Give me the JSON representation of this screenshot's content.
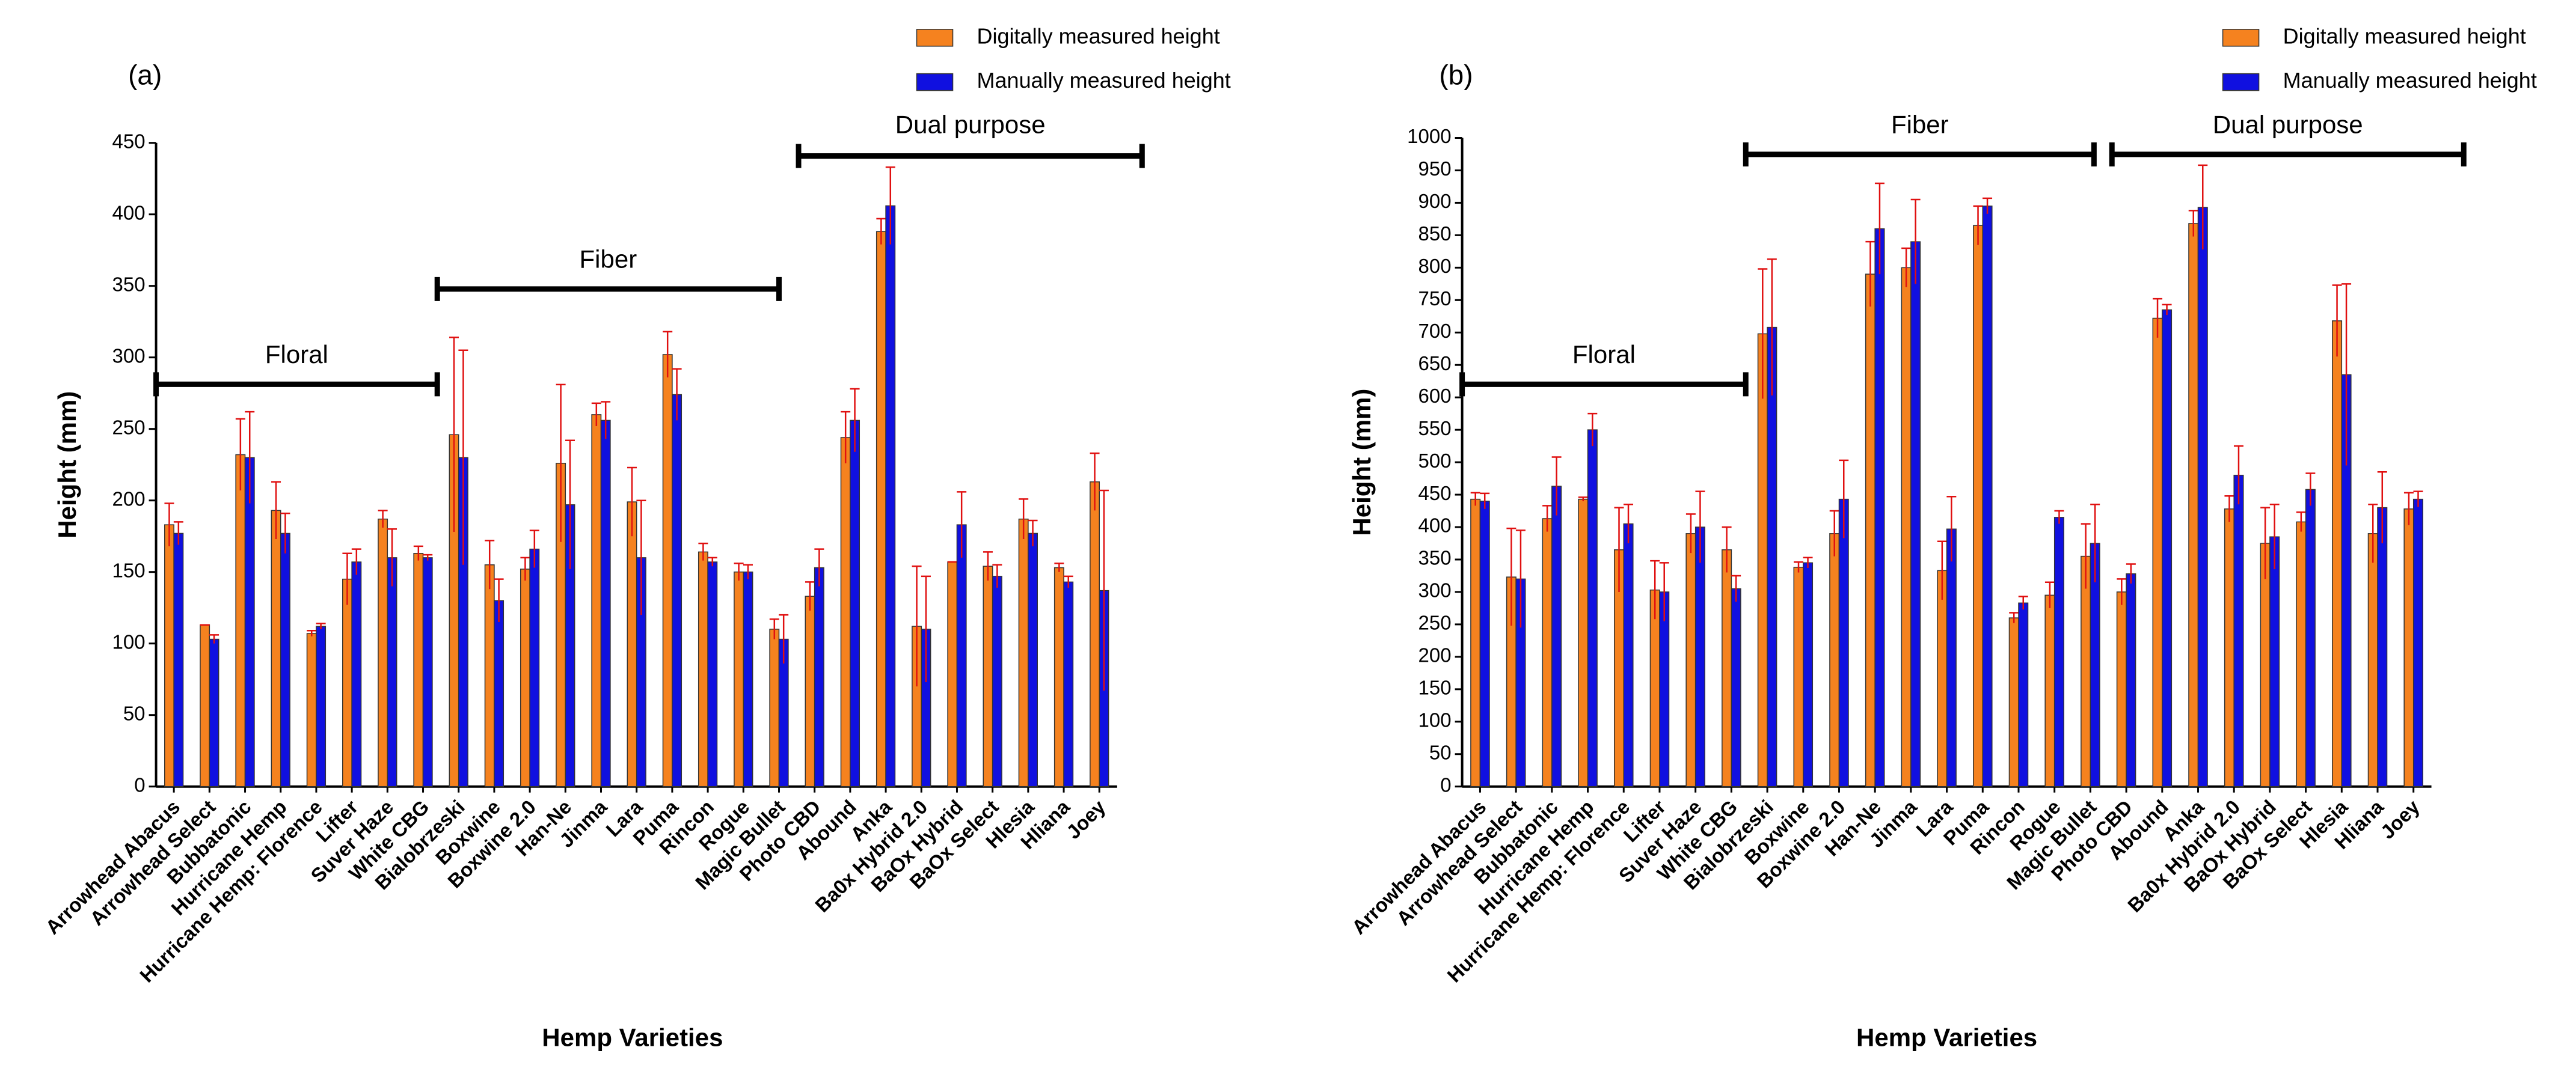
{
  "chart_data": [
    {
      "type": "bar",
      "title": "(a)",
      "xlabel": "Hemp Varieties",
      "ylabel": "Height (mm)",
      "categories": [
        "Arrowhead Abacus",
        "Arrowhead Select",
        "Bubbatonic",
        "Hurricane Hemp",
        "Hurricane Hemp: Florence",
        "Lifter",
        "Suver Haze",
        "White CBG",
        "Bialobrzeski",
        "Boxwine",
        "Boxwine 2.0",
        "Han-Ne",
        "Jinma",
        "Lara",
        "Puma",
        "Rincon",
        "Rogue",
        "Magic Bullet",
        "Photo CBD",
        "Abound",
        "Anka",
        "Ba0x Hybrid 2.0",
        "BaOx Hybrid",
        "BaOx Select",
        "Hlesia",
        "Hliana",
        "Joey"
      ],
      "series": [
        {
          "name": "Digitally measured height",
          "color": "#f5821f",
          "values": [
            183,
            113,
            232,
            193,
            107,
            145,
            187,
            163,
            246,
            155,
            152,
            226,
            260,
            199,
            302,
            164,
            150,
            110,
            133,
            244,
            388,
            112,
            157,
            154,
            187,
            153,
            213
          ],
          "errors": [
            15,
            0,
            25,
            20,
            2,
            18,
            6,
            5,
            68,
            17,
            8,
            55,
            8,
            24,
            16,
            6,
            6,
            7,
            10,
            18,
            9,
            42,
            0,
            10,
            14,
            3,
            20
          ]
        },
        {
          "name": "Manually measured height",
          "color": "#1010e0",
          "values": [
            177,
            103,
            230,
            177,
            112,
            157,
            160,
            160,
            230,
            130,
            166,
            197,
            256,
            160,
            274,
            157,
            150,
            103,
            153,
            256,
            406,
            110,
            183,
            147,
            177,
            143,
            137
          ],
          "errors": [
            8,
            3,
            32,
            14,
            2,
            9,
            20,
            2,
            75,
            15,
            13,
            45,
            13,
            40,
            18,
            3,
            5,
            17,
            13,
            22,
            27,
            37,
            23,
            8,
            9,
            4,
            70
          ]
        }
      ],
      "ylim": [
        0,
        450
      ],
      "yticks": [
        0,
        50,
        100,
        150,
        200,
        250,
        300,
        350,
        400,
        450
      ],
      "annotations": [
        "Floral",
        "Fiber",
        "Dual purpose"
      ]
    },
    {
      "type": "bar",
      "title": "(b)",
      "xlabel": "Hemp Varieties",
      "ylabel": "Height (mm)",
      "categories": [
        "Arrowhead Abacus",
        "Arrowhead Select",
        "Bubbatonic",
        "Hurricane Hemp",
        "Hurricane Hemp: Florence",
        "Lifter",
        "Suver Haze",
        "White CBG",
        "Bialobrzeski",
        "Boxwine",
        "Boxwine 2.0",
        "Han-Ne",
        "Jinma",
        "Lara",
        "Puma",
        "Rincon",
        "Rogue",
        "Magic Bullet",
        "Photo CBD",
        "Abound",
        "Anka",
        "Ba0x Hybrid 2.0",
        "BaOx Hybrid",
        "BaOx Select",
        "Hlesia",
        "Hliana",
        "Joey"
      ],
      "series": [
        {
          "name": "Digitally measured height",
          "color": "#f5821f",
          "values": [
            443,
            323,
            413,
            443,
            365,
            303,
            390,
            365,
            698,
            338,
            390,
            790,
            800,
            333,
            865,
            260,
            295,
            355,
            300,
            722,
            868,
            428,
            375,
            408,
            718,
            390,
            428
          ],
          "errors": [
            10,
            75,
            20,
            3,
            65,
            45,
            30,
            35,
            100,
            8,
            35,
            50,
            30,
            45,
            30,
            8,
            20,
            50,
            20,
            30,
            20,
            20,
            55,
            15,
            55,
            45,
            25
          ]
        },
        {
          "name": "Manually measured height",
          "color": "#1010e0",
          "values": [
            440,
            320,
            463,
            550,
            405,
            300,
            400,
            305,
            708,
            345,
            443,
            860,
            840,
            397,
            895,
            283,
            415,
            375,
            328,
            735,
            893,
            480,
            385,
            458,
            635,
            430,
            443
          ],
          "errors": [
            12,
            75,
            45,
            25,
            30,
            45,
            55,
            20,
            105,
            8,
            60,
            70,
            65,
            50,
            12,
            10,
            10,
            60,
            15,
            8,
            65,
            45,
            50,
            25,
            140,
            55,
            12
          ]
        }
      ],
      "ylim": [
        0,
        1000
      ],
      "yticks": [
        0,
        50,
        100,
        150,
        200,
        250,
        300,
        350,
        400,
        450,
        500,
        550,
        600,
        650,
        700,
        750,
        800,
        850,
        900,
        950,
        1000
      ],
      "annotations": [
        "Floral",
        "Fiber",
        "Dual purpose"
      ]
    }
  ]
}
